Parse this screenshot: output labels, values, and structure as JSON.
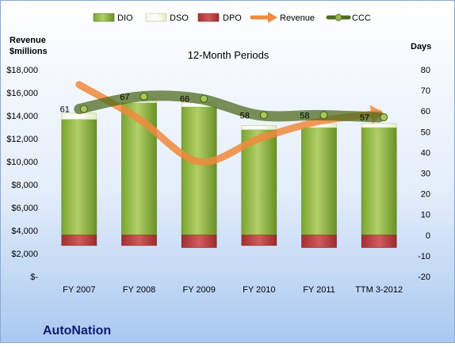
{
  "chart_data": {
    "type": "bar",
    "title": "12-Month Periods",
    "company": "AutoNation",
    "left_axis_label_line1": "Revenue",
    "left_axis_label_line2": "$millions",
    "right_axis_label": "Days",
    "categories": [
      "FY 2007",
      "FY 2008",
      "FY 2009",
      "FY 2010",
      "FY 2011",
      "TTM 3-2012"
    ],
    "left_axis": {
      "min": 0,
      "max": 18000,
      "step": 2000,
      "tick_labels": [
        "$-",
        "$2,000",
        "$4,000",
        "$6,000",
        "$8,000",
        "$10,000",
        "$12,000",
        "$14,000",
        "$16,000",
        "$18,000"
      ]
    },
    "right_axis": {
      "min": -20,
      "max": 80,
      "step": 10,
      "tick_labels": [
        "-20",
        "-10",
        "0",
        "10",
        "20",
        "30",
        "40",
        "50",
        "60",
        "70",
        "80"
      ]
    },
    "series": [
      {
        "name": "DIO",
        "axis": "right",
        "kind": "stacked-bar",
        "values": [
          56,
          64,
          62,
          51,
          52,
          52
        ]
      },
      {
        "name": "DSO",
        "axis": "right",
        "kind": "stacked-bar",
        "values": [
          3,
          2,
          2,
          2,
          2,
          2
        ]
      },
      {
        "name": "DPO",
        "axis": "right",
        "kind": "negative-bar",
        "values": [
          -5,
          -5,
          -6,
          -5,
          -6,
          -6
        ]
      },
      {
        "name": "Revenue",
        "axis": "left",
        "kind": "smooth-line",
        "values": [
          16700,
          13700,
          10000,
          12000,
          13500,
          14200
        ]
      },
      {
        "name": "CCC",
        "axis": "right",
        "kind": "smooth-line",
        "values": [
          61,
          67,
          66,
          58,
          58,
          57
        ],
        "labels": [
          "61",
          "67",
          "66",
          "58",
          "58",
          "57"
        ]
      }
    ],
    "legend": {
      "placement": "top",
      "items": [
        "DIO",
        "DSO",
        "DPO",
        "Revenue",
        "CCC"
      ]
    },
    "colors": {
      "background_top": "#ffffff",
      "background_bottom": "#a9c8f0",
      "dio": "#6f9a2b",
      "dio_light": "#a8c65a",
      "dso": "#e9f2cf",
      "dpo": "#b8393a",
      "revenue": "#f08a3c",
      "ccc": "#4d6b1f"
    },
    "grid": false
  }
}
